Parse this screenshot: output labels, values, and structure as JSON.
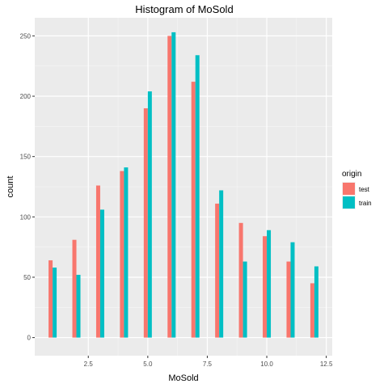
{
  "chart_data": {
    "type": "bar",
    "title": "Histogram of MoSold",
    "xlabel": "MoSold",
    "ylabel": "count",
    "xlim": [
      0.25,
      12.75
    ],
    "ylim": [
      -15,
      265
    ],
    "x_ticks": [
      2.5,
      5.0,
      7.5,
      10.0,
      12.5
    ],
    "x_tick_labels": [
      "2.5",
      "5.0",
      "7.5",
      "10.0",
      "12.5"
    ],
    "y_ticks": [
      0,
      50,
      100,
      150,
      200,
      250
    ],
    "y_tick_labels": [
      "0",
      "50",
      "100",
      "150",
      "200",
      "250"
    ],
    "grid": true,
    "legend": {
      "title": "origin",
      "placement": "right"
    },
    "x": [
      1,
      2,
      3,
      4,
      5,
      6,
      7,
      8,
      9,
      10,
      11,
      12
    ],
    "series": [
      {
        "name": "test",
        "color": "#f8766d",
        "values": [
          64,
          81,
          126,
          138,
          190,
          250,
          212,
          111,
          95,
          84,
          63,
          45
        ]
      },
      {
        "name": "train",
        "color": "#00bfc4",
        "values": [
          58,
          52,
          106,
          141,
          204,
          253,
          234,
          122,
          63,
          89,
          79,
          59
        ]
      }
    ]
  }
}
